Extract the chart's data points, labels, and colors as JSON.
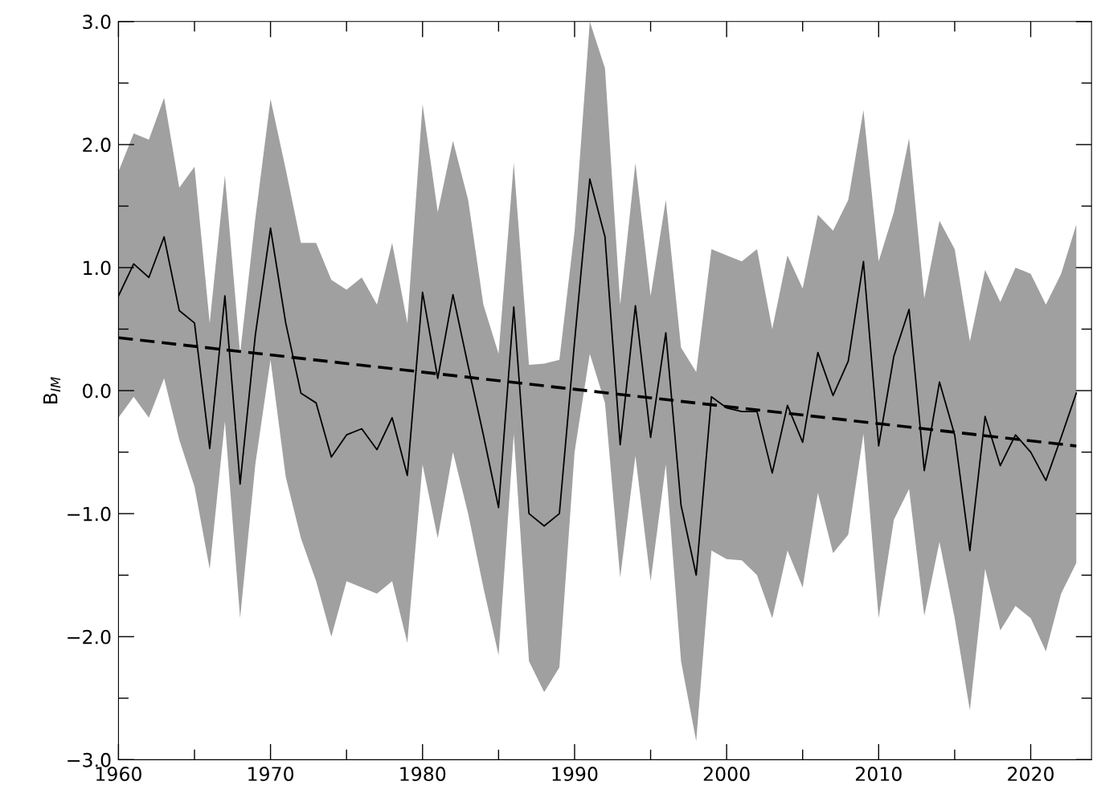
{
  "chart_data": {
    "type": "line",
    "ylabel": "B$_{IM}$",
    "xlim": [
      1960,
      2024
    ],
    "ylim": [
      -3.0,
      3.0
    ],
    "xticks": [
      1960,
      {
        "value": 1965,
        "label": null
      },
      1970,
      {
        "value": 1975,
        "label": null
      },
      1980,
      {
        "value": 1985,
        "label": null
      },
      1990,
      {
        "value": 1995,
        "label": null
      },
      2000,
      {
        "value": 2005,
        "label": null
      },
      2010,
      {
        "value": 2015,
        "label": null
      },
      2020
    ],
    "yticks": [
      {
        "value": -3.0,
        "label": "−3.0"
      },
      {
        "value": -2.5,
        "label": null
      },
      {
        "value": -2.0,
        "label": "−2.0"
      },
      {
        "value": -1.5,
        "label": null
      },
      {
        "value": -1.0,
        "label": "−1.0"
      },
      {
        "value": -0.5,
        "label": null
      },
      {
        "value": 0.0,
        "label": "0.0"
      },
      {
        "value": 0.5,
        "label": null
      },
      {
        "value": 1.0,
        "label": "1.0"
      },
      {
        "value": 1.5,
        "label": null
      },
      {
        "value": 2.0,
        "label": "2.0"
      },
      {
        "value": 2.5,
        "label": null
      },
      {
        "value": 3.0,
        "label": "3.0"
      }
    ],
    "grid": false,
    "legend": false,
    "marker": "none",
    "x": [
      1960,
      1961,
      1962,
      1963,
      1964,
      1965,
      1966,
      1967,
      1968,
      1969,
      1970,
      1971,
      1972,
      1973,
      1974,
      1975,
      1976,
      1977,
      1978,
      1979,
      1980,
      1981,
      1982,
      1983,
      1984,
      1985,
      1986,
      1987,
      1988,
      1989,
      1990,
      1991,
      1992,
      1993,
      1994,
      1995,
      1996,
      1997,
      1998,
      1999,
      2000,
      2001,
      2002,
      2003,
      2004,
      2005,
      2006,
      2007,
      2008,
      2009,
      2010,
      2011,
      2012,
      2013,
      2014,
      2015,
      2016,
      2017,
      2018,
      2019,
      2020,
      2021,
      2022,
      2023
    ],
    "series": [
      {
        "type": "area",
        "color": "#a0a0a0",
        "values": [
          null,
          null,
          null,
          null,
          null,
          null,
          null,
          null,
          null,
          null,
          null,
          null,
          null,
          null,
          null,
          null,
          null,
          null,
          null,
          null,
          null,
          null,
          null,
          null,
          null,
          null,
          null,
          null,
          null,
          null,
          null,
          null,
          null,
          null,
          null,
          null,
          null,
          null,
          null,
          null,
          null,
          null,
          null,
          null,
          null,
          null,
          null,
          null,
          null,
          null,
          null,
          null,
          null,
          null,
          null,
          null,
          null,
          null,
          null,
          null,
          null,
          null,
          null,
          null
        ],
        "lower": [
          -0.22,
          -0.05,
          -0.22,
          0.1,
          -0.4,
          -0.78,
          -1.45,
          -0.25,
          -1.85,
          -0.6,
          0.25,
          -0.7,
          -1.2,
          -1.55,
          -2.0,
          -1.55,
          -1.6,
          -1.65,
          -1.55,
          -2.05,
          -0.6,
          -1.2,
          -0.5,
          -1.0,
          -1.6,
          -2.15,
          -0.35,
          -2.2,
          -2.45,
          -2.25,
          -0.5,
          0.3,
          -0.1,
          -1.52,
          -0.53,
          -1.55,
          -0.6,
          -2.2,
          -2.85,
          -1.3,
          -1.37,
          -1.38,
          -1.5,
          -1.85,
          -1.3,
          -1.6,
          -0.83,
          -1.32,
          -1.17,
          -0.35,
          -1.85,
          -1.05,
          -0.8,
          -1.83,
          -1.23,
          -1.85,
          -2.6,
          -1.45,
          -1.95,
          -1.75,
          -1.85,
          -2.12,
          -1.65,
          -1.4
        ],
        "upper": [
          1.78,
          2.09,
          2.04,
          2.38,
          1.65,
          1.82,
          0.55,
          1.75,
          0.3,
          1.4,
          2.37,
          1.8,
          1.2,
          1.2,
          0.9,
          0.82,
          0.92,
          0.7,
          1.2,
          0.55,
          2.33,
          1.45,
          2.03,
          1.55,
          0.7,
          0.3,
          1.85,
          0.21,
          0.22,
          0.25,
          1.3,
          3.0,
          2.62,
          0.7,
          1.85,
          0.77,
          1.55,
          0.35,
          0.15,
          1.15,
          1.1,
          1.05,
          1.15,
          0.5,
          1.1,
          0.83,
          1.43,
          1.3,
          1.55,
          2.28,
          1.05,
          1.45,
          2.05,
          0.75,
          1.38,
          1.15,
          0.4,
          0.98,
          0.72,
          1.0,
          0.95,
          0.7,
          0.95,
          1.35
        ]
      },
      {
        "color": "#000000",
        "line_style": "solid",
        "values": [
          0.77,
          1.03,
          0.92,
          1.25,
          0.65,
          0.55,
          -0.47,
          0.77,
          -0.76,
          0.45,
          1.32,
          0.55,
          -0.02,
          -0.1,
          -0.54,
          -0.36,
          -0.31,
          -0.48,
          -0.22,
          -0.69,
          0.8,
          0.1,
          0.78,
          0.2,
          -0.36,
          -0.95,
          0.68,
          -1.0,
          -1.1,
          -1.0,
          0.4,
          1.72,
          1.25,
          -0.44,
          0.69,
          -0.38,
          0.47,
          -0.93,
          -1.5,
          -0.05,
          -0.14,
          -0.17,
          -0.17,
          -0.67,
          -0.12,
          -0.42,
          0.31,
          -0.04,
          0.24,
          1.05,
          -0.45,
          0.28,
          0.66,
          -0.65,
          0.07,
          -0.36,
          -1.3,
          -0.21,
          -0.61,
          -0.36,
          -0.5,
          -0.73,
          -0.38,
          -0.02
        ]
      },
      {
        "type": "line",
        "color": "#000000",
        "line_style": "dashed",
        "x": [
          1960,
          2023
        ],
        "values": [
          0.43,
          -0.45
        ]
      }
    ]
  }
}
